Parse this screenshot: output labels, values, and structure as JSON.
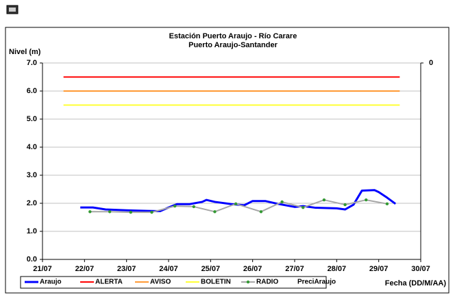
{
  "chart_data": {
    "type": "line",
    "title": "Estación Puerto Araujo - Río Carare",
    "subtitle": "Puerto Araujo-Santander",
    "y_label": "Nivel (m)",
    "x_label": "Fecha (DD/M/AA)",
    "xlim": [
      21,
      30
    ],
    "xticks": [
      {
        "value": 21,
        "label": "21/07"
      },
      {
        "value": 22,
        "label": "22/07"
      },
      {
        "value": 23,
        "label": "23/07"
      },
      {
        "value": 24,
        "label": "24/07"
      },
      {
        "value": 25,
        "label": "25/07"
      },
      {
        "value": 26,
        "label": "26/07"
      },
      {
        "value": 27,
        "label": "27/07"
      },
      {
        "value": 28,
        "label": "28/07"
      },
      {
        "value": 29,
        "label": "29/07"
      },
      {
        "value": 30,
        "label": "30/07"
      }
    ],
    "ylim": [
      0,
      7
    ],
    "yticks": [
      {
        "value": 0,
        "label": "0.0"
      },
      {
        "value": 1,
        "label": "1.0"
      },
      {
        "value": 2,
        "label": "2.0"
      },
      {
        "value": 3,
        "label": "3.0"
      },
      {
        "value": 4,
        "label": "4.0"
      },
      {
        "value": 5,
        "label": "5.0"
      },
      {
        "value": 6,
        "label": "6.0"
      },
      {
        "value": 7,
        "label": "7.0"
      }
    ],
    "y2ticks": [
      0
    ],
    "grid": true,
    "series": [
      {
        "name": "Araujo",
        "color": "#0000ff",
        "width": 3,
        "x": [
          21.9,
          22.2,
          22.5,
          23.0,
          23.5,
          23.8,
          24.0,
          24.2,
          24.5,
          24.8,
          24.9,
          25.1,
          25.5,
          25.8,
          26.0,
          26.3,
          26.6,
          27.0,
          27.2,
          27.5,
          28.0,
          28.2,
          28.4,
          28.6,
          28.9,
          29.0,
          29.2,
          29.4
        ],
        "values": [
          1.85,
          1.85,
          1.78,
          1.75,
          1.73,
          1.72,
          1.85,
          1.97,
          1.97,
          2.05,
          2.12,
          2.05,
          1.97,
          1.93,
          2.08,
          2.08,
          1.98,
          1.87,
          1.9,
          1.84,
          1.82,
          1.78,
          1.95,
          2.45,
          2.47,
          2.4,
          2.2,
          1.98
        ]
      },
      {
        "name": "ALERTA",
        "color": "#ff0000",
        "width": 2,
        "x": [
          21.5,
          29.5
        ],
        "values": [
          6.5,
          6.5
        ]
      },
      {
        "name": "AVISO",
        "color": "#ff9933",
        "width": 2,
        "x": [
          21.5,
          29.5
        ],
        "values": [
          6.0,
          6.0
        ]
      },
      {
        "name": "BOLETIN",
        "color": "#ffff33",
        "width": 2,
        "x": [
          21.5,
          29.5
        ],
        "values": [
          5.5,
          5.5
        ]
      },
      {
        "name": "RADIO",
        "color": "#a6a6a6",
        "marker_color": "#339933",
        "width": 2,
        "markers": true,
        "x": [
          22.13,
          22.6,
          23.1,
          23.6,
          24.15,
          24.6,
          25.1,
          25.6,
          26.2,
          26.7,
          27.2,
          27.7,
          28.2,
          28.7,
          29.2
        ],
        "values": [
          1.7,
          1.7,
          1.68,
          1.68,
          1.9,
          1.88,
          1.7,
          1.98,
          1.7,
          2.05,
          1.85,
          2.12,
          1.95,
          2.12,
          1.98
        ]
      },
      {
        "name": "PreciAraujo",
        "color": "#ffffff",
        "axis": "y2",
        "x": [],
        "values": []
      }
    ]
  }
}
